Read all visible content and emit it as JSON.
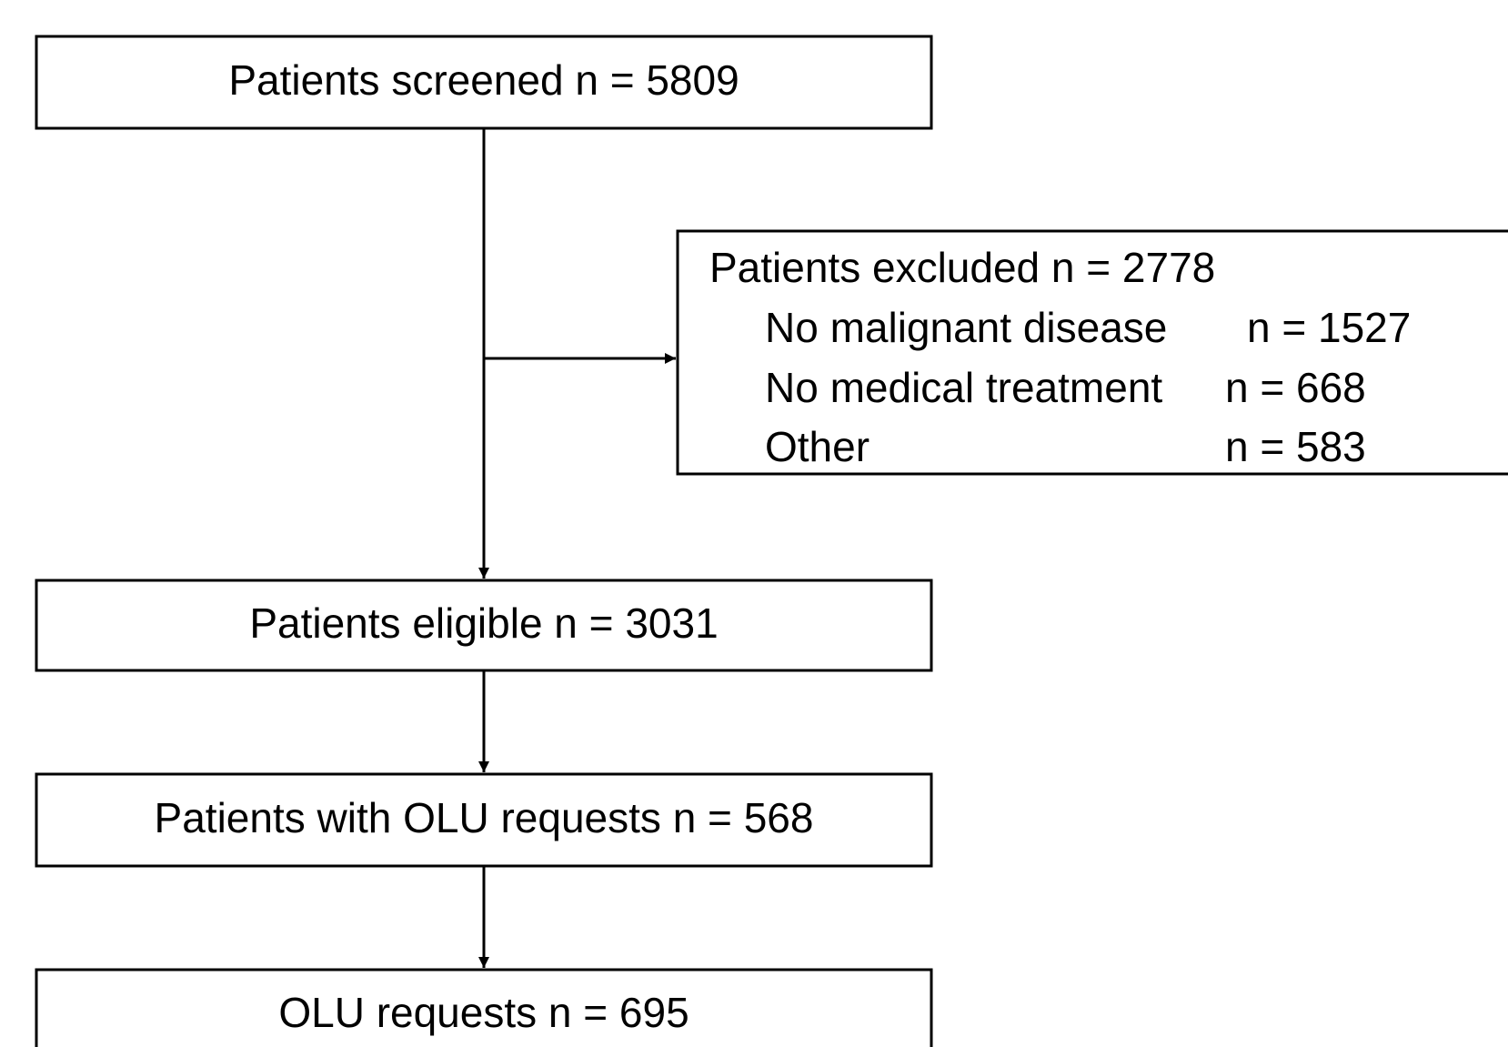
{
  "nodes": [
    {
      "label": "Patients screened n = 5809"
    },
    {
      "label": "Patients eligible n = 3031"
    },
    {
      "label": "Patients with OLU requests n = 568"
    },
    {
      "label": "OLU requests n = 695"
    }
  ],
  "excluded": {
    "title": "Patients excluded n = 2778",
    "reasons": [
      {
        "label": "No malignant disease",
        "count": "n = 1527"
      },
      {
        "label": "No medical treatment",
        "count": "n = 668"
      },
      {
        "label": "Other",
        "count": "n = 583"
      }
    ]
  }
}
